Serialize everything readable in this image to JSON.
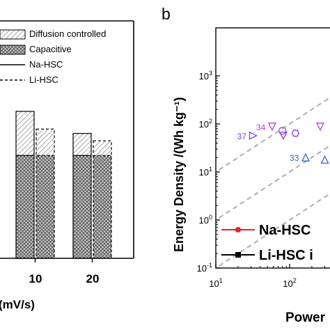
{
  "chart_data": [
    {
      "type": "bar",
      "panel": "a",
      "xlabel": "(mV/s)",
      "categories": [
        "10",
        "20"
      ],
      "series": [
        {
          "name": "Na-HSC",
          "capacitive": [
            70,
            70
          ],
          "total": [
            100,
            85
          ]
        },
        {
          "name": "Li-HSC",
          "capacitive": [
            70,
            70
          ],
          "total": [
            88,
            80
          ]
        }
      ],
      "legend": [
        {
          "label": "Diffusion controlled",
          "style": "hatch"
        },
        {
          "label": "Capacitive",
          "style": "crosshatch"
        },
        {
          "label": "Na-HSC",
          "style": "solid"
        },
        {
          "label": "Li-HSC",
          "style": "dashed"
        }
      ]
    },
    {
      "type": "scatter",
      "panel": "b",
      "panel_label": "b",
      "xlabel": "Power",
      "ylabel": "Energy Density /(Wh kg⁻¹)",
      "xscale": "log",
      "yscale": "log",
      "xlim": [
        10,
        1000
      ],
      "ylim": [
        0.1,
        1000
      ],
      "x_ticks": [
        "10¹",
        "10²"
      ],
      "y_ticks": [
        "10⁻¹",
        "10⁰",
        "10¹",
        "10²",
        "10³"
      ],
      "points": [
        {
          "label": "37",
          "x": 32,
          "y": 57,
          "marker": "triangle-right",
          "color": "#7b3fe4"
        },
        {
          "label": "34",
          "x": 58,
          "y": 88,
          "marker": "triangle-down",
          "color": "#b040d0"
        },
        {
          "label": "",
          "x": 80,
          "y": 72,
          "marker": "circle",
          "color": "#b040d0"
        },
        {
          "label": "",
          "x": 82,
          "y": 57,
          "marker": "triangle-down",
          "color": "#7b3fe4"
        },
        {
          "label": "",
          "x": 120,
          "y": 64,
          "marker": "hexagon",
          "color": "#7b3fe4"
        },
        {
          "label": "33",
          "x": 165,
          "y": 20,
          "marker": "triangle-up",
          "color": "#3d5fd6"
        },
        {
          "label": "",
          "x": 260,
          "y": 88,
          "marker": "triangle-down",
          "color": "#b040d0"
        },
        {
          "label": "",
          "x": 300,
          "y": 18,
          "marker": "triangle-up",
          "color": "#3d5fd6"
        }
      ],
      "legend": [
        {
          "label": "Na-HSC",
          "color": "#e8202a",
          "marker": "circle"
        },
        {
          "label": "Li-HSC i",
          "color": "#000000",
          "marker": "square"
        }
      ],
      "grid": false
    }
  ]
}
